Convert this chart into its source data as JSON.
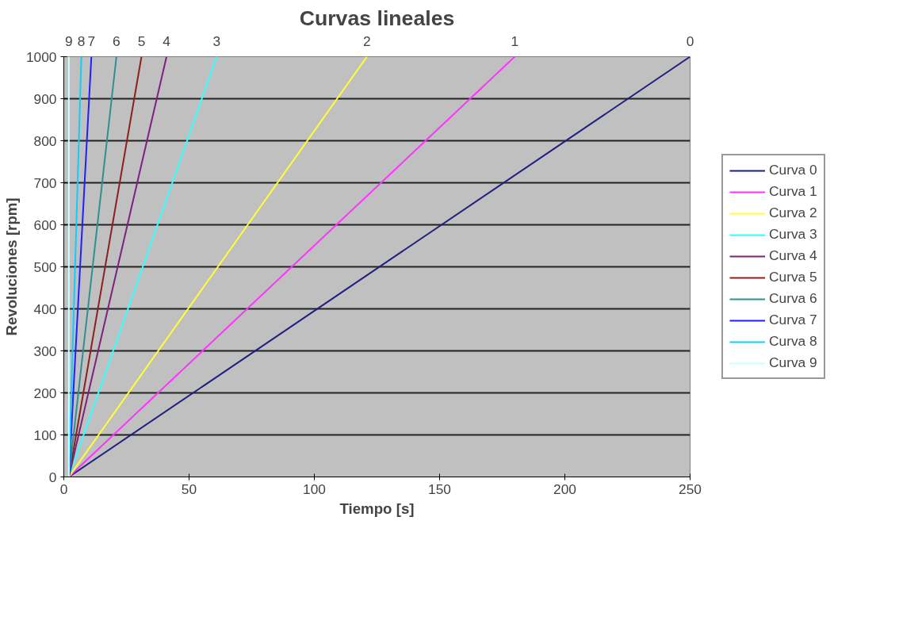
{
  "chart_data": {
    "type": "line",
    "title": "Curvas lineales",
    "xlabel": "Tiempo [s]",
    "ylabel": "Revoluciones [rpm]",
    "xlim": [
      0,
      250
    ],
    "xticks": [
      0,
      50,
      100,
      150,
      200,
      250
    ],
    "ylim": [
      0,
      1000
    ],
    "yticks": [
      0,
      100,
      200,
      300,
      400,
      500,
      600,
      700,
      800,
      900,
      1000
    ],
    "grid": "y",
    "legend": "right",
    "line_style": "solid",
    "marker": "none",
    "series": [
      {
        "name": "Curva 0",
        "color": "#1f1f7f",
        "x": [
          2,
          250
        ],
        "values": [
          0,
          1000
        ]
      },
      {
        "name": "Curva 1",
        "color": "#ff33ff",
        "x": [
          2,
          180
        ],
        "values": [
          0,
          1000
        ]
      },
      {
        "name": "Curva 2",
        "color": "#ffff33",
        "x": [
          2,
          121
        ],
        "values": [
          0,
          1000
        ]
      },
      {
        "name": "Curva 3",
        "color": "#33ffff",
        "x": [
          2,
          61
        ],
        "values": [
          0,
          1000
        ]
      },
      {
        "name": "Curva 4",
        "color": "#7f1f7f",
        "x": [
          2,
          41
        ],
        "values": [
          0,
          1000
        ]
      },
      {
        "name": "Curva 5",
        "color": "#8f1f1f",
        "x": [
          2,
          31
        ],
        "values": [
          0,
          1000
        ]
      },
      {
        "name": "Curva 6",
        "color": "#2f8f8f",
        "x": [
          2,
          21
        ],
        "values": [
          0,
          1000
        ]
      },
      {
        "name": "Curva 7",
        "color": "#1f1fff",
        "x": [
          2,
          11
        ],
        "values": [
          0,
          1000
        ]
      },
      {
        "name": "Curva 8",
        "color": "#11ccff",
        "x": [
          2,
          7
        ],
        "values": [
          0,
          1000
        ]
      },
      {
        "name": "Curva 9",
        "color": "#ccffff",
        "x": [
          2,
          2
        ],
        "values": [
          0,
          1000
        ]
      }
    ],
    "annotations": [
      "0",
      "1",
      "2",
      "3",
      "4",
      "5",
      "6",
      "7",
      "8",
      "9"
    ]
  }
}
